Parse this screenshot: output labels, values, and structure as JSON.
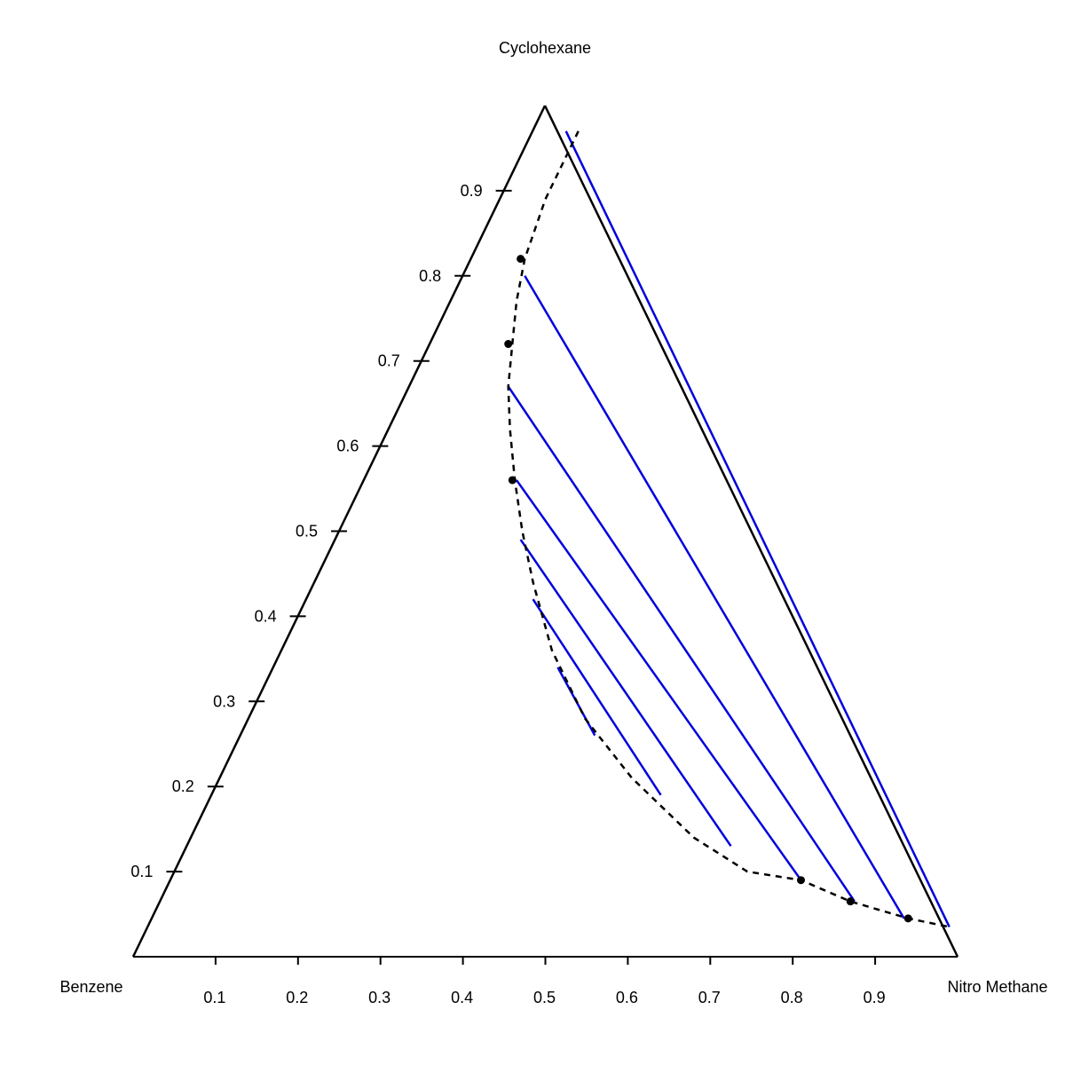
{
  "chart_data": {
    "type": "scatter",
    "title": "",
    "vertices": {
      "top": "Cyclohexane",
      "left": "Benzene",
      "right": "Nitro Methane"
    },
    "left_axis_ticks": [
      "0.1",
      "0.2",
      "0.3",
      "0.4",
      "0.5",
      "0.6",
      "0.7",
      "0.8",
      "0.9"
    ],
    "bottom_axis_ticks": [
      "0.1",
      "0.2",
      "0.3",
      "0.4",
      "0.5",
      "0.6",
      "0.7",
      "0.8",
      "0.9"
    ],
    "binodal_curve": [
      {
        "x": 0.54,
        "y": 0.97
      },
      {
        "x": 0.5,
        "y": 0.89
      },
      {
        "x": 0.475,
        "y": 0.82
      },
      {
        "x": 0.465,
        "y": 0.77
      },
      {
        "x": 0.46,
        "y": 0.72
      },
      {
        "x": 0.455,
        "y": 0.67
      },
      {
        "x": 0.457,
        "y": 0.62
      },
      {
        "x": 0.463,
        "y": 0.56
      },
      {
        "x": 0.472,
        "y": 0.5
      },
      {
        "x": 0.485,
        "y": 0.44
      },
      {
        "x": 0.508,
        "y": 0.36
      },
      {
        "x": 0.548,
        "y": 0.28
      },
      {
        "x": 0.605,
        "y": 0.21
      },
      {
        "x": 0.68,
        "y": 0.14
      },
      {
        "x": 0.745,
        "y": 0.1
      },
      {
        "x": 0.81,
        "y": 0.09
      },
      {
        "x": 0.87,
        "y": 0.065
      },
      {
        "x": 0.94,
        "y": 0.045
      },
      {
        "x": 0.99,
        "y": 0.035
      }
    ],
    "points": [
      {
        "x": 0.47,
        "y": 0.82
      },
      {
        "x": 0.455,
        "y": 0.72
      },
      {
        "x": 0.46,
        "y": 0.56
      },
      {
        "x": 0.81,
        "y": 0.09
      },
      {
        "x": 0.87,
        "y": 0.065
      },
      {
        "x": 0.94,
        "y": 0.045
      }
    ],
    "tie_lines": [
      {
        "x1": 0.525,
        "y1": 0.97,
        "x2": 0.99,
        "y2": 0.035
      },
      {
        "x1": 0.475,
        "y1": 0.8,
        "x2": 0.935,
        "y2": 0.045
      },
      {
        "x1": 0.455,
        "y1": 0.67,
        "x2": 0.875,
        "y2": 0.065
      },
      {
        "x1": 0.465,
        "y1": 0.56,
        "x2": 0.81,
        "y2": 0.09
      },
      {
        "x1": 0.47,
        "y1": 0.49,
        "x2": 0.725,
        "y2": 0.13
      },
      {
        "x1": 0.485,
        "y1": 0.42,
        "x2": 0.64,
        "y2": 0.19
      },
      {
        "x1": 0.515,
        "y1": 0.34,
        "x2": 0.56,
        "y2": 0.26
      }
    ],
    "colors": {
      "axis": "#000000",
      "tie_line": "#0000dd",
      "binodal": "#000000"
    }
  }
}
